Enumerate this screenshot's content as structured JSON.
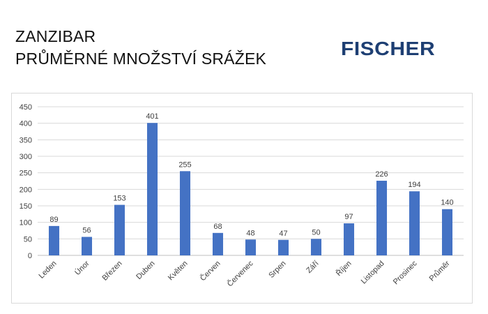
{
  "header": {
    "title_line1": "ZANZIBAR",
    "title_line2": "PRŮMĚRNÉ MNOŽSTVÍ SRÁŽEK"
  },
  "logo": {
    "text": "FISCHER",
    "color": "#1e3f73"
  },
  "chart_data": {
    "type": "bar",
    "categories": [
      "Leden",
      "Únor",
      "Březen",
      "Duben",
      "Květen",
      "Červen",
      "Červenec",
      "Srpen",
      "Září",
      "Říjen",
      "Listopad",
      "Prosinec",
      "Průměr"
    ],
    "values": [
      89,
      56,
      153,
      401,
      255,
      68,
      48,
      47,
      50,
      97,
      226,
      194,
      140
    ],
    "ylim": [
      0,
      450
    ],
    "yticks": [
      0,
      50,
      100,
      150,
      200,
      250,
      300,
      350,
      400,
      450
    ],
    "grid": true,
    "data_labels": true,
    "bar_color": "#4472c4",
    "title": "",
    "xlabel": "",
    "ylabel": ""
  }
}
